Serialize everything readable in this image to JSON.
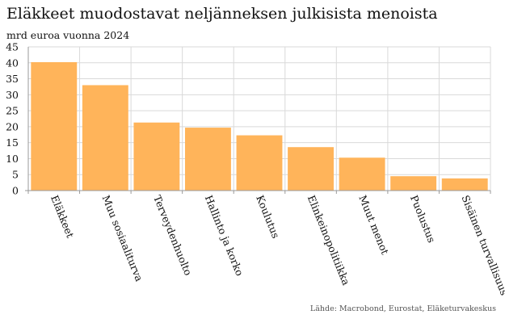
{
  "title": "Eläkkeet muodostavat neljänneksen julkisista menoista",
  "subtitle": "mrd euroa vuonna 2024",
  "source": "Lähde: Macrobond, Eurostat, Eläketurvakeskus",
  "colors": {
    "bar": "#ffb45a",
    "grid": "#d9d9d9",
    "axis": "#999999"
  },
  "chart_data": {
    "type": "bar",
    "title": "Eläkkeet muodostavat neljänneksen julkisista menoista",
    "subtitle": "mrd euroa vuonna 2024",
    "xlabel": "",
    "ylabel": "",
    "ylim": [
      0,
      45
    ],
    "yticks": [
      0,
      5,
      10,
      15,
      20,
      25,
      30,
      35,
      40,
      45
    ],
    "grid": true,
    "categories": [
      "Eläkkeet",
      "Muu sosiaaliturva",
      "Terveydenhuolto",
      "Hallinto ja korko",
      "Koulutus",
      "Elinkeinopolitiikka",
      "Muut menot",
      "Puolustus",
      "Sisäinen turvallisuus"
    ],
    "values": [
      40.2,
      33.0,
      21.3,
      19.7,
      17.3,
      13.6,
      10.3,
      4.5,
      3.8
    ]
  }
}
